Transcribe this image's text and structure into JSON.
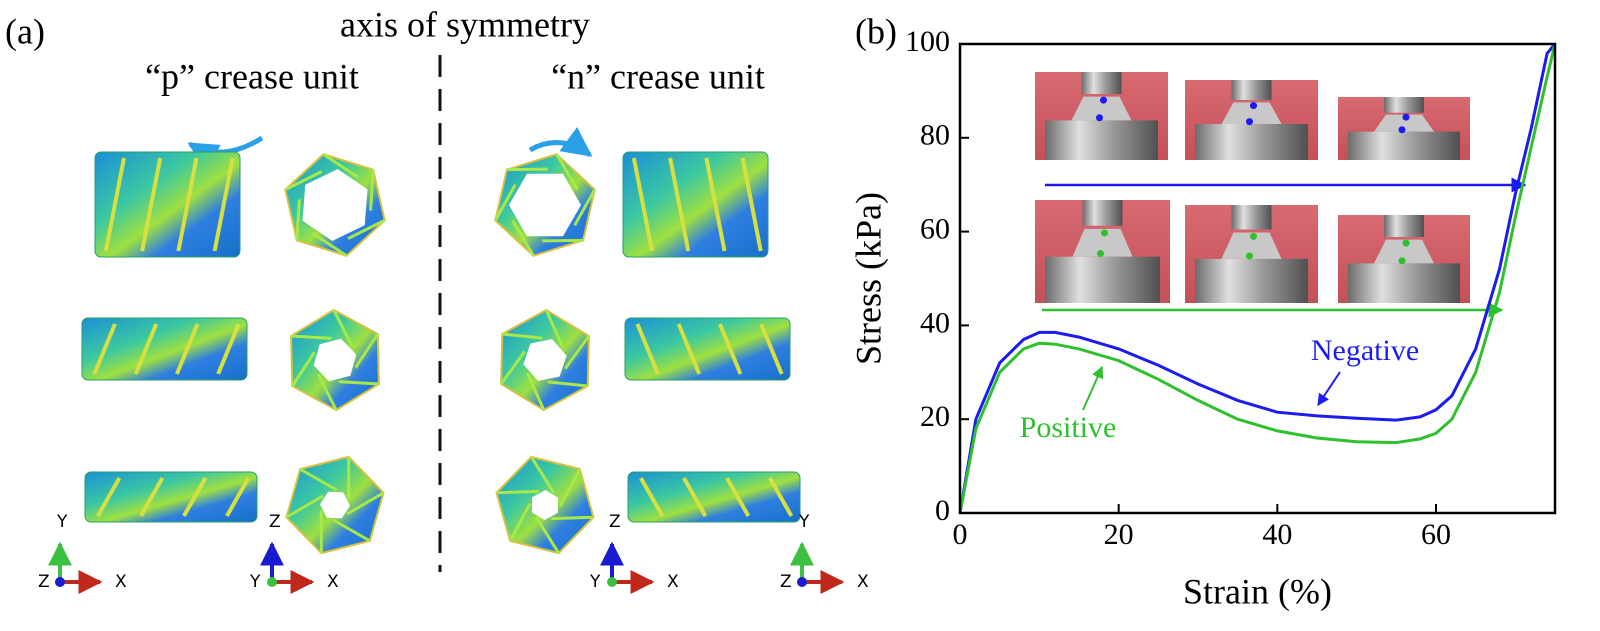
{
  "panel_a": {
    "label": "(a)",
    "title": "axis of symmetry",
    "left_heading": "“p” crease unit",
    "right_heading": "“n” crease unit",
    "triads": [
      {
        "up": "Y",
        "origin": "Z",
        "right": "X"
      },
      {
        "up": "Z",
        "origin": "Y",
        "right": "X"
      },
      {
        "up": "Z",
        "origin": "Y",
        "right": "X"
      },
      {
        "up": "Y",
        "origin": "Z",
        "right": "X"
      }
    ]
  },
  "chart_data": {
    "type": "line",
    "panel_label": "(b)",
    "x_label": "Strain (%)",
    "y_label": "Stress (kPa)",
    "x": [
      0,
      2,
      5,
      8,
      10,
      12,
      15,
      20,
      25,
      30,
      35,
      40,
      45,
      50,
      55,
      58,
      60,
      62,
      65,
      68,
      70,
      72,
      74,
      75
    ],
    "series": [
      {
        "name": "Negative",
        "color": "#1c1cf0",
        "values": [
          0,
          20,
          32,
          37,
          38.5,
          38.5,
          37.5,
          35,
          31.5,
          27.5,
          24,
          21.5,
          20.7,
          20.2,
          19.8,
          20.5,
          22,
          25,
          35,
          52,
          68,
          82,
          98,
          100
        ]
      },
      {
        "name": "Positive",
        "color": "#2ec02e",
        "values": [
          0,
          18,
          30,
          35,
          36.2,
          36,
          35,
          32.5,
          28.5,
          24,
          20,
          17.5,
          16,
          15.2,
          15,
          15.8,
          17,
          20,
          30,
          47,
          63,
          78,
          93,
          100
        ]
      }
    ],
    "xlim": [
      0,
      75
    ],
    "ylim": [
      0,
      100
    ],
    "xticks": [
      0,
      20,
      40,
      60
    ],
    "yticks": [
      0,
      20,
      40,
      60,
      80,
      100
    ]
  }
}
